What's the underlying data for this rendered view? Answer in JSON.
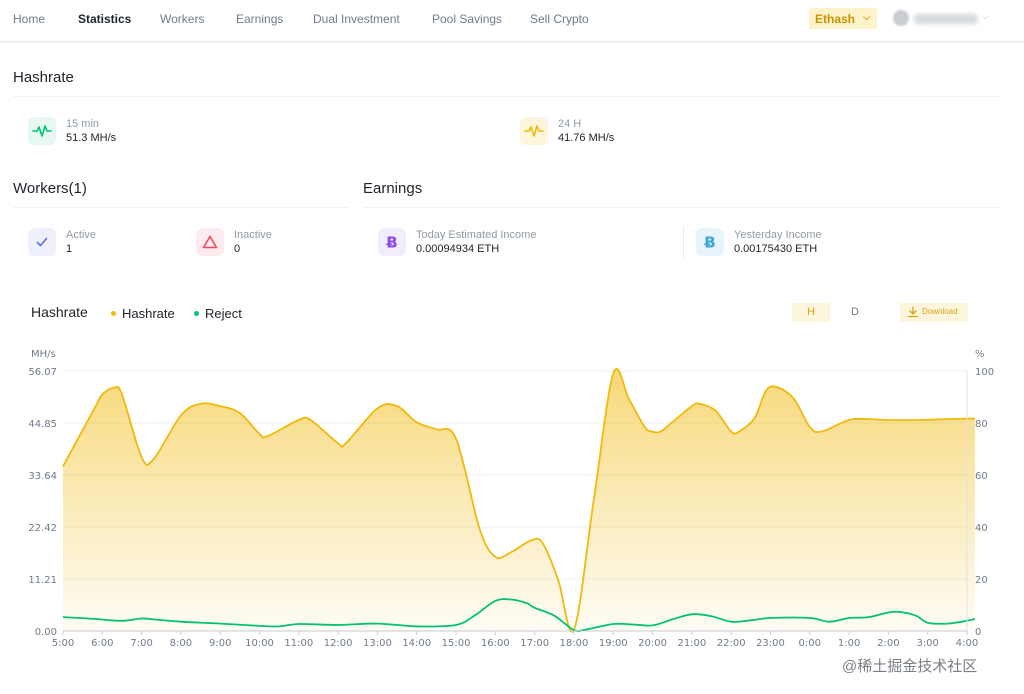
{
  "nav": {
    "items": [
      {
        "label": "Home",
        "active": false
      },
      {
        "label": "Statistics",
        "active": true
      },
      {
        "label": "Workers",
        "active": false
      },
      {
        "label": "Earnings",
        "active": false
      },
      {
        "label": "Dual Investment",
        "active": false
      },
      {
        "label": "Pool Savings",
        "active": false
      },
      {
        "label": "Sell Crypto",
        "active": false
      }
    ],
    "algorithm": "Ethash",
    "algorithm_icon": "chevron-down-icon"
  },
  "hashrate_section": {
    "title": "Hashrate",
    "items": [
      {
        "label": "15 min",
        "value": "51.3 MH/s",
        "icon": "pulse-icon",
        "color": "#02c076",
        "bg": "#e6f8ef"
      },
      {
        "label": "24 H",
        "value": "41.76 MH/s",
        "icon": "pulse-icon",
        "color": "#f0b90b",
        "bg": "#fdf5dc"
      }
    ]
  },
  "workers_section": {
    "title": "Workers(1)",
    "items": [
      {
        "label": "Active",
        "value": "1",
        "icon": "check-icon",
        "color": "#5b6fe0",
        "bg": "#eef0fb"
      },
      {
        "label": "Inactive",
        "value": "0",
        "icon": "warning-icon",
        "color": "#f6465d",
        "bg": "#fdecef"
      }
    ]
  },
  "earnings_section": {
    "title": "Earnings",
    "items": [
      {
        "label": "Today Estimated Income",
        "value": "0.00094934 ETH",
        "icon": "bitcoin-icon",
        "color": "#8a4be6",
        "bg": "#f2ecfc"
      },
      {
        "label": "Yesterday Income",
        "value": "0.00175430 ETH",
        "icon": "bitcoin-icon",
        "color": "#3ea3d8",
        "bg": "#e8f4fb"
      }
    ]
  },
  "chart_header": {
    "title": "Hashrate",
    "legend": [
      {
        "name": "Hashrate",
        "color": "#f0b90b"
      },
      {
        "name": "Reject",
        "color": "#02c076"
      }
    ],
    "toggle_h": "H",
    "toggle_d": "D",
    "download": "Download"
  },
  "chart_data": {
    "type": "line",
    "title": "Hashrate",
    "ylabel": "MH/s",
    "y2label": "%",
    "ylim": [
      0,
      56.07
    ],
    "yticks": [
      "0.00",
      "11.21",
      "22.42",
      "33.64",
      "44.85",
      "56.07"
    ],
    "y2lim": [
      0,
      100
    ],
    "y2ticks": [
      "0",
      "20",
      "40",
      "60",
      "80",
      "100"
    ],
    "categories": [
      "5:00",
      "6:00",
      "7:00",
      "8:00",
      "9:00",
      "10:00",
      "11:00",
      "12:00",
      "13:00",
      "14:00",
      "15:00",
      "16:00",
      "17:00",
      "18:00",
      "19:00",
      "20:00",
      "21:00",
      "22:00",
      "23:00",
      "0:00",
      "1:00",
      "2:00",
      "3:00",
      "4:00"
    ],
    "series": [
      {
        "name": "Hashrate",
        "color": "#f0b90b",
        "axis": "left",
        "x": [
          5.0,
          5.8,
          6.0,
          6.3,
          6.5,
          7.0,
          7.3,
          8.0,
          8.5,
          9.0,
          9.5,
          10.0,
          10.2,
          11.0,
          11.3,
          12.0,
          12.2,
          13.0,
          13.5,
          14.0,
          14.5,
          15.0,
          15.6,
          16.0,
          16.4,
          16.9,
          17.2,
          17.6,
          18.0,
          18.5,
          19.0,
          19.4,
          19.8,
          20.0,
          20.2,
          20.5,
          21.0,
          21.2,
          21.6,
          22.0,
          22.2,
          22.6,
          22.9,
          23.2,
          23.6,
          24.0,
          24.3,
          25.0,
          25.5,
          26.0,
          26.8,
          27.5,
          28.0,
          28.2
        ],
        "y": [
          35.5,
          48.0,
          51.0,
          52.5,
          51.0,
          37.5,
          37.0,
          46.5,
          49.0,
          48.5,
          47.0,
          42.5,
          42.0,
          45.5,
          45.5,
          40.5,
          40.5,
          48.0,
          48.5,
          45.0,
          43.5,
          41.5,
          22.0,
          16.0,
          17.0,
          19.5,
          19.0,
          11.0,
          0.3,
          28.0,
          55.5,
          50.0,
          44.0,
          43.0,
          43.0,
          45.0,
          48.5,
          49.0,
          47.5,
          43.0,
          43.0,
          46.0,
          52.0,
          52.5,
          50.0,
          44.0,
          43.0,
          45.5,
          45.7,
          45.5,
          45.5,
          45.7,
          45.8,
          45.8
        ]
      },
      {
        "name": "Reject",
        "color": "#02c076",
        "axis": "left",
        "x": [
          5.0,
          5.8,
          6.5,
          7.0,
          7.3,
          8.0,
          9.0,
          10.0,
          10.5,
          11.0,
          12.0,
          13.0,
          14.0,
          15.0,
          15.5,
          16.0,
          16.4,
          16.8,
          17.0,
          17.5,
          18.0,
          18.3,
          19.0,
          19.5,
          20.0,
          20.5,
          21.0,
          21.5,
          22.0,
          22.5,
          23.0,
          24.0,
          24.5,
          25.0,
          25.5,
          26.0,
          26.3,
          26.7,
          27.0,
          27.5,
          28.0,
          28.2
        ],
        "y": [
          3.0,
          2.6,
          2.2,
          2.7,
          2.5,
          2.0,
          1.6,
          1.1,
          1.0,
          1.5,
          1.3,
          1.6,
          1.0,
          1.3,
          3.5,
          6.5,
          6.8,
          6.0,
          5.0,
          3.3,
          0.2,
          0.3,
          1.5,
          1.4,
          1.2,
          2.5,
          3.6,
          3.2,
          2.0,
          2.3,
          2.8,
          2.8,
          2.0,
          2.8,
          3.0,
          4.0,
          4.1,
          3.3,
          1.8,
          1.6,
          2.2,
          2.6
        ]
      }
    ]
  },
  "watermark": "@稀土掘金技术社区"
}
